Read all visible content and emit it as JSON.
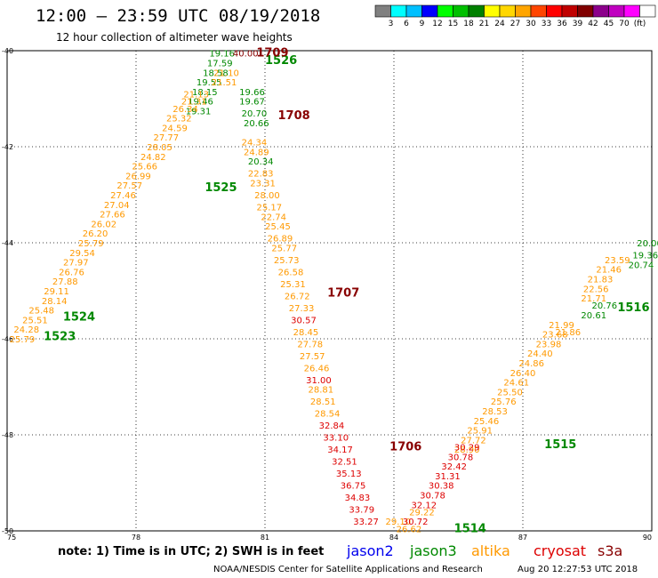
{
  "header": {
    "title": "12:00 – 23:59 UTC 08/19/2018",
    "subtitle": "12 hour collection of altimeter wave heights"
  },
  "colorbar": {
    "colors": [
      "#808080",
      "#00ffff",
      "#00c0ff",
      "#0000ff",
      "#00ff00",
      "#00c000",
      "#008000",
      "#ffff00",
      "#ffd700",
      "#ffa500",
      "#ff4500",
      "#ff0000",
      "#c00000",
      "#800000",
      "#8b008b",
      "#c000c0",
      "#ff00ff",
      "#ffffff"
    ],
    "labels": [
      "3",
      "6",
      "9",
      "12",
      "15",
      "18",
      "21",
      "24",
      "27",
      "30",
      "33",
      "36",
      "39",
      "42",
      "45",
      "70",
      "(ft)"
    ]
  },
  "footer": {
    "note": "note:  1) Time is in UTC;  2) SWH is in feet",
    "credit": "NOAA/NESDIS Center for Satellite Applications and Research",
    "timestamp": "Aug 20 12:27:53 UTC 2018",
    "satellites": [
      {
        "name": "jason2",
        "color": "#0000ee"
      },
      {
        "name": "jason3",
        "color": "#008800"
      },
      {
        "name": "altika",
        "color": "#ff9900"
      },
      {
        "name": "cryosat",
        "color": "#dd0000"
      },
      {
        "name": "s3a",
        "color": "#880000"
      }
    ]
  },
  "chart_data": {
    "type": "scatter",
    "title": "12:00 – 23:59 UTC 08/19/2018",
    "subtitle": "12 hour collection of altimeter wave heights",
    "xlim": [
      75,
      90
    ],
    "ylim": [
      -50,
      -40
    ],
    "xticks": [
      "75",
      "78",
      "81",
      "84",
      "87",
      "90"
    ],
    "yticks": [
      "-40",
      "-42",
      "-44",
      "-46",
      "-48",
      "-50"
    ],
    "grid": "dotted",
    "series": [
      {
        "name": "jason3",
        "color": "#008800",
        "pass_labels": [
          {
            "text": "1523",
            "x": 75.85,
            "y": -45.95
          },
          {
            "text": "1524",
            "x": 76.3,
            "y": -45.55
          },
          {
            "text": "1525",
            "x": 79.6,
            "y": -42.85
          },
          {
            "text": "1526",
            "x": 81.0,
            "y": -40.2
          },
          {
            "text": "1514",
            "x": 85.4,
            "y": -49.95
          },
          {
            "text": "1515",
            "x": 87.5,
            "y": -48.2
          },
          {
            "text": "1516",
            "x": 89.2,
            "y": -45.35
          }
        ],
        "points": [
          {
            "x": 80.0,
            "y": -40.05,
            "v": 19.16
          },
          {
            "x": 79.95,
            "y": -40.25,
            "v": 17.59
          },
          {
            "x": 79.85,
            "y": -40.45,
            "v": 18.58
          },
          {
            "x": 79.7,
            "y": -40.65,
            "v": 19.55
          },
          {
            "x": 79.6,
            "y": -40.85,
            "v": 18.15
          },
          {
            "x": 79.5,
            "y": -41.05,
            "v": 19.46
          },
          {
            "x": 79.45,
            "y": -41.25,
            "v": 19.31
          },
          {
            "x": 80.7,
            "y": -40.85,
            "v": 19.66
          },
          {
            "x": 80.7,
            "y": -41.05,
            "v": 19.67
          },
          {
            "x": 80.75,
            "y": -41.3,
            "v": 20.7
          },
          {
            "x": 80.8,
            "y": -41.5,
            "v": 20.66
          },
          {
            "x": 80.9,
            "y": -42.3,
            "v": 20.34
          },
          {
            "x": 89.95,
            "y": -44.0,
            "v": 20.0
          },
          {
            "x": 89.85,
            "y": -44.25,
            "v": 19.36
          },
          {
            "x": 89.75,
            "y": -44.45,
            "v": 20.74
          },
          {
            "x": 88.9,
            "y": -45.3,
            "v": 20.76
          },
          {
            "x": 88.65,
            "y": -45.5,
            "v": 20.61
          }
        ]
      },
      {
        "name": "altika",
        "color": "#ff9900",
        "pass_labels": [],
        "points": [
          {
            "x": 75.35,
            "y": -46.0,
            "v": 25.79
          },
          {
            "x": 75.45,
            "y": -45.8,
            "v": 24.28
          },
          {
            "x": 75.65,
            "y": -45.6,
            "v": 25.51
          },
          {
            "x": 75.8,
            "y": -45.4,
            "v": 25.48
          },
          {
            "x": 76.1,
            "y": -45.2,
            "v": 28.14
          },
          {
            "x": 76.15,
            "y": -45.0,
            "v": 29.11
          },
          {
            "x": 76.35,
            "y": -44.8,
            "v": 27.88
          },
          {
            "x": 76.5,
            "y": -44.6,
            "v": 26.76
          },
          {
            "x": 76.6,
            "y": -44.4,
            "v": 27.97
          },
          {
            "x": 76.75,
            "y": -44.2,
            "v": 29.54
          },
          {
            "x": 76.95,
            "y": -44.0,
            "v": 25.79
          },
          {
            "x": 77.05,
            "y": -43.8,
            "v": 26.2
          },
          {
            "x": 77.25,
            "y": -43.6,
            "v": 26.02
          },
          {
            "x": 77.45,
            "y": -43.4,
            "v": 27.66
          },
          {
            "x": 77.55,
            "y": -43.2,
            "v": 27.04
          },
          {
            "x": 77.7,
            "y": -43.0,
            "v": 27.46
          },
          {
            "x": 77.85,
            "y": -42.8,
            "v": 27.57
          },
          {
            "x": 78.05,
            "y": -42.6,
            "v": 26.99
          },
          {
            "x": 78.2,
            "y": -42.4,
            "v": 25.66
          },
          {
            "x": 78.4,
            "y": -42.2,
            "v": 24.82
          },
          {
            "x": 78.55,
            "y": -42.0,
            "v": 28.05
          },
          {
            "x": 78.7,
            "y": -41.8,
            "v": 27.77
          },
          {
            "x": 78.9,
            "y": -41.6,
            "v": 24.59
          },
          {
            "x": 79.0,
            "y": -41.4,
            "v": 25.32
          },
          {
            "x": 79.15,
            "y": -41.2,
            "v": 26.34
          },
          {
            "x": 79.35,
            "y": -41.05,
            "v": 21.31
          },
          {
            "x": 79.4,
            "y": -40.9,
            "v": 21.13
          },
          {
            "x": 80.1,
            "y": -40.45,
            "v": 21.1
          },
          {
            "x": 80.05,
            "y": -40.65,
            "v": 21.51
          },
          {
            "x": 80.75,
            "y": -41.9,
            "v": 24.34
          },
          {
            "x": 80.8,
            "y": -42.1,
            "v": 24.89
          },
          {
            "x": 80.9,
            "y": -42.55,
            "v": 22.83
          },
          {
            "x": 80.95,
            "y": -42.75,
            "v": 23.31
          },
          {
            "x": 81.05,
            "y": -43.0,
            "v": 28.0
          },
          {
            "x": 81.1,
            "y": -43.25,
            "v": 25.17
          },
          {
            "x": 81.2,
            "y": -43.45,
            "v": 22.74
          },
          {
            "x": 81.3,
            "y": -43.65,
            "v": 25.45
          },
          {
            "x": 81.35,
            "y": -43.9,
            "v": 26.89
          },
          {
            "x": 81.45,
            "y": -44.1,
            "v": 25.77
          },
          {
            "x": 81.5,
            "y": -44.35,
            "v": 25.73
          },
          {
            "x": 81.6,
            "y": -44.6,
            "v": 26.58
          },
          {
            "x": 81.65,
            "y": -44.85,
            "v": 25.31
          },
          {
            "x": 81.75,
            "y": -45.1,
            "v": 26.72
          },
          {
            "x": 81.85,
            "y": -45.35,
            "v": 27.33
          },
          {
            "x": 81.95,
            "y": -45.85,
            "v": 28.45
          },
          {
            "x": 82.05,
            "y": -46.1,
            "v": 27.78
          },
          {
            "x": 82.1,
            "y": -46.35,
            "v": 27.57
          },
          {
            "x": 82.2,
            "y": -46.6,
            "v": 26.46
          },
          {
            "x": 82.3,
            "y": -47.05,
            "v": 28.81
          },
          {
            "x": 82.35,
            "y": -47.3,
            "v": 28.51
          },
          {
            "x": 82.45,
            "y": -47.55,
            "v": 28.54
          },
          {
            "x": 84.1,
            "y": -49.8,
            "v": 29.1
          },
          {
            "x": 84.35,
            "y": -49.95,
            "v": 26.62
          },
          {
            "x": 84.65,
            "y": -49.6,
            "v": 29.22
          },
          {
            "x": 85.7,
            "y": -48.3,
            "v": 28.9
          },
          {
            "x": 85.85,
            "y": -48.1,
            "v": 27.72
          },
          {
            "x": 86.0,
            "y": -47.9,
            "v": 25.91
          },
          {
            "x": 86.15,
            "y": -47.7,
            "v": 25.46
          },
          {
            "x": 86.35,
            "y": -47.5,
            "v": 28.53
          },
          {
            "x": 86.55,
            "y": -47.3,
            "v": 25.76
          },
          {
            "x": 86.7,
            "y": -47.1,
            "v": 25.5
          },
          {
            "x": 86.85,
            "y": -46.9,
            "v": 24.61
          },
          {
            "x": 87.0,
            "y": -46.7,
            "v": 26.4
          },
          {
            "x": 87.2,
            "y": -46.5,
            "v": 24.86
          },
          {
            "x": 87.4,
            "y": -46.3,
            "v": 24.4
          },
          {
            "x": 87.6,
            "y": -46.1,
            "v": 23.98
          },
          {
            "x": 87.75,
            "y": -45.9,
            "v": 23.68
          },
          {
            "x": 87.9,
            "y": -45.7,
            "v": 21.99
          },
          {
            "x": 88.05,
            "y": -45.85,
            "v": 21.86
          },
          {
            "x": 88.65,
            "y": -45.15,
            "v": 21.71
          },
          {
            "x": 88.7,
            "y": -44.95,
            "v": 22.56
          },
          {
            "x": 88.8,
            "y": -44.75,
            "v": 21.83
          },
          {
            "x": 89.0,
            "y": -44.55,
            "v": 21.46
          },
          {
            "x": 89.2,
            "y": -44.35,
            "v": 23.59
          }
        ]
      },
      {
        "name": "cryosat",
        "color": "#dd0000",
        "pass_labels": [],
        "points": [
          {
            "x": 81.9,
            "y": -45.6,
            "v": 30.57
          },
          {
            "x": 82.25,
            "y": -46.85,
            "v": 31.0
          },
          {
            "x": 82.55,
            "y": -47.8,
            "v": 32.84
          },
          {
            "x": 82.65,
            "y": -48.05,
            "v": 33.1
          },
          {
            "x": 82.75,
            "y": -48.3,
            "v": 34.17
          },
          {
            "x": 82.85,
            "y": -48.55,
            "v": 32.51
          },
          {
            "x": 82.95,
            "y": -48.8,
            "v": 35.13
          },
          {
            "x": 83.05,
            "y": -49.05,
            "v": 36.75
          },
          {
            "x": 83.15,
            "y": -49.3,
            "v": 34.83
          },
          {
            "x": 83.25,
            "y": -49.55,
            "v": 33.79
          },
          {
            "x": 83.35,
            "y": -49.8,
            "v": 33.27
          },
          {
            "x": 84.5,
            "y": -49.8,
            "v": 30.72
          },
          {
            "x": 84.7,
            "y": -49.45,
            "v": 32.12
          },
          {
            "x": 84.9,
            "y": -49.25,
            "v": 30.78
          },
          {
            "x": 85.1,
            "y": -49.05,
            "v": 30.38
          },
          {
            "x": 85.25,
            "y": -48.85,
            "v": 31.31
          },
          {
            "x": 85.4,
            "y": -48.65,
            "v": 32.42
          },
          {
            "x": 85.55,
            "y": -48.45,
            "v": 30.78
          },
          {
            "x": 85.7,
            "y": -48.25,
            "v": 30.29
          }
        ]
      },
      {
        "name": "s3a",
        "color": "#880000",
        "pass_labels": [
          {
            "text": "1709",
            "x": 80.8,
            "y": -40.05
          },
          {
            "text": "1708",
            "x": 81.3,
            "y": -41.35
          },
          {
            "text": "1707",
            "x": 82.45,
            "y": -45.05
          },
          {
            "text": "1706",
            "x": 83.9,
            "y": -48.25
          }
        ],
        "points": [
          {
            "x": 80.55,
            "y": -40.05,
            "v": 40.0
          }
        ]
      }
    ]
  }
}
